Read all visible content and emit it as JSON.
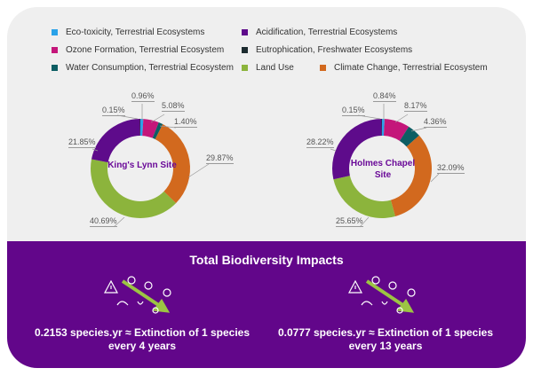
{
  "legend": [
    {
      "label": "Eco-toxicity, Terrestrial Ecosystems",
      "color": "#2aa2e8"
    },
    {
      "label": "Acidification, Terrestrial Ecosystems",
      "color": "#5e0b8b"
    },
    {
      "label": "Ozone Formation, Terrestrial Ecosystem",
      "color": "#c4167a"
    },
    {
      "label": "Eutrophication, Freshwater Ecosystems",
      "color": "#1c2b2f"
    },
    {
      "label": "Water Consumption, Terrestrial Ecosystem",
      "color": "#0d5e63"
    },
    {
      "label": "Land Use",
      "color": "#8cb43c"
    },
    {
      "label": "Climate Change, Terrestrial Ecosystem",
      "color": "#d2691e"
    }
  ],
  "chart_data": [
    {
      "type": "pie",
      "title": "King's Lynn Site",
      "categories": [
        "Eco-toxicity",
        "Ozone Formation",
        "Water Consumption",
        "Climate Change",
        "Land Use",
        "Acidification",
        "Eutrophication"
      ],
      "values": [
        0.96,
        5.08,
        1.4,
        29.87,
        40.69,
        21.85,
        0.15
      ],
      "labels": [
        "0.96%",
        "5.08%",
        "1.40%",
        "29.87%",
        "40.69%",
        "21.85%",
        "0.15%"
      ]
    },
    {
      "type": "pie",
      "title": "Holmes Chapel Site",
      "categories": [
        "Eco-toxicity",
        "Ozone Formation",
        "Water Consumption",
        "Climate Change",
        "Land Use",
        "Acidification",
        "Eutrophication"
      ],
      "values": [
        0.84,
        8.17,
        4.36,
        32.09,
        25.65,
        28.22,
        0.15
      ],
      "labels": [
        "0.84%",
        "8.17%",
        "4.36%",
        "32.09%",
        "25.65%",
        "28.22%",
        "0.15%"
      ]
    }
  ],
  "colors": [
    "#2aa2e8",
    "#c4167a",
    "#0d5e63",
    "#d2691e",
    "#8cb43c",
    "#5e0b8b",
    "#1c2b2f"
  ],
  "impacts": {
    "title": "Total Biodiversity Impacts",
    "sites": [
      {
        "line1": "0.2153 species.yr ≈ Extinction of 1 species",
        "line2": "every 4 years"
      },
      {
        "line1": "0.0777 species.yr ≈ Extinction of 1 species",
        "line2": "every 13 years"
      }
    ]
  }
}
